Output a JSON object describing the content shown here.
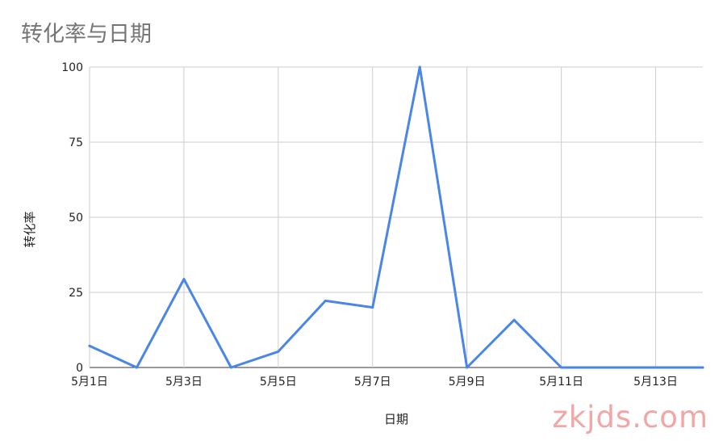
{
  "chart_data": {
    "type": "line",
    "title": "转化率与日期",
    "xlabel": "日期",
    "ylabel": "转化率",
    "x": [
      "5月1日",
      "5月2日",
      "5月3日",
      "5月4日",
      "5月5日",
      "5月6日",
      "5月7日",
      "5月8日",
      "5月9日",
      "5月10日",
      "5月11日",
      "5月12日",
      "5月13日",
      "5月14日"
    ],
    "x_tick_labels": [
      "5月1日",
      "5月3日",
      "5月5日",
      "5月7日",
      "5月9日",
      "5月11日",
      "5月13日"
    ],
    "series": [
      {
        "values": [
          7.2,
          0,
          29.4,
          0,
          5.3,
          22.2,
          20.0,
          100,
          0,
          15.8,
          0,
          0,
          0,
          0
        ]
      }
    ],
    "yticks": [
      0,
      25,
      50,
      75,
      100
    ],
    "ylim": [
      0,
      100
    ],
    "grid": true,
    "line_color": "#4a86e8"
  },
  "watermark": "zkjds.com"
}
